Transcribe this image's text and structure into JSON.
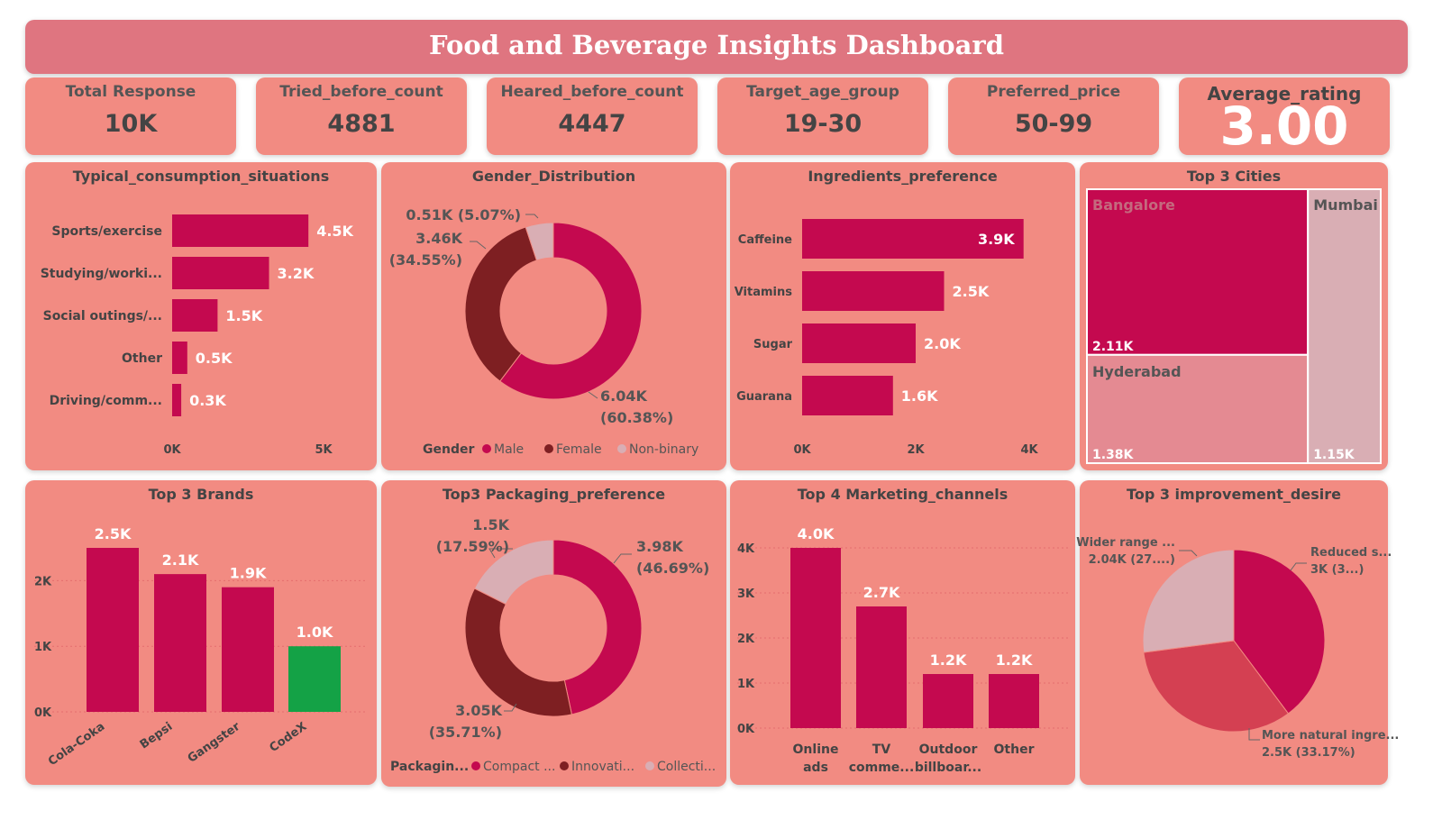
{
  "dashboard": {
    "title": "Food and Beverage Insights Dashboard"
  },
  "kpis": [
    {
      "label": "Total Response",
      "value": "10K"
    },
    {
      "label": "Tried_before_count",
      "value": "4881"
    },
    {
      "label": "Heared_before_count",
      "value": "4447"
    },
    {
      "label": "Target_age_group",
      "value": "19-30"
    },
    {
      "label": "Preferred_price",
      "value": "50-99"
    },
    {
      "label": "Average_rating",
      "value": "3.00"
    }
  ],
  "colors": {
    "primary": "#c4094f",
    "dark": "#7e1f22",
    "light": "#d9aeb4",
    "green": "#14a246",
    "panel": "#f28b82",
    "mid": "#d44052"
  },
  "chart_data": [
    {
      "type": "bar",
      "orientation": "horizontal",
      "title": "Typical_consumption_situations",
      "categories": [
        "Sports/exercise",
        "Studying/worki...",
        "Social outings/...",
        "Other",
        "Driving/comm..."
      ],
      "values": [
        4.5,
        3.2,
        1.5,
        0.5,
        0.3
      ],
      "labels": [
        "4.5K",
        "3.2K",
        "1.5K",
        "0.5K",
        "0.3K"
      ],
      "xlim": [
        0,
        5
      ],
      "ticks": [
        "0K",
        "5K"
      ]
    },
    {
      "type": "pie",
      "donut": true,
      "title": "Gender_Distribution",
      "legend_title": "Gender",
      "categories": [
        "Male",
        "Female",
        "Non-binary"
      ],
      "values": [
        6.04,
        3.46,
        0.51
      ],
      "percents": [
        60.38,
        34.55,
        5.07
      ],
      "labels": [
        "6.04K",
        "3.46K",
        "0.51K (5.07%)"
      ],
      "pct_labels": [
        "(60.38%)",
        "(34.55%)",
        ""
      ]
    },
    {
      "type": "bar",
      "orientation": "horizontal",
      "title": "Ingredients_preference",
      "categories": [
        "Caffeine",
        "Vitamins",
        "Sugar",
        "Guarana"
      ],
      "values": [
        3.9,
        2.5,
        2.0,
        1.6
      ],
      "labels": [
        "3.9K",
        "2.5K",
        "2.0K",
        "1.6K"
      ],
      "xlim": [
        0,
        4
      ],
      "ticks": [
        "0K",
        "2K",
        "4K"
      ]
    },
    {
      "type": "treemap",
      "title": "Top 3 Cities",
      "categories": [
        "Bangalore",
        "Hyderabad",
        "Mumbai"
      ],
      "values": [
        2.11,
        1.38,
        1.15
      ],
      "labels": [
        "2.11K",
        "1.38K",
        "1.15K"
      ]
    },
    {
      "type": "bar",
      "title": "Top 3 Brands",
      "categories": [
        "Cola-Coka",
        "Bepsi",
        "Gangster",
        "CodeX"
      ],
      "values": [
        2.5,
        2.1,
        1.9,
        1.0
      ],
      "labels": [
        "2.5K",
        "2.1K",
        "1.9K",
        "1.0K"
      ],
      "ylim": [
        0,
        2.5
      ],
      "ticks": [
        "0K",
        "1K",
        "2K"
      ]
    },
    {
      "type": "pie",
      "donut": true,
      "title": "Top3 Packaging_preference",
      "legend_title": "Packagin...",
      "categories": [
        "Compact ...",
        "Innovati...",
        "Collecti..."
      ],
      "values": [
        3.98,
        3.05,
        1.5
      ],
      "percents": [
        46.69,
        35.71,
        17.59
      ],
      "labels": [
        "3.98K",
        "3.05K",
        "1.5K"
      ],
      "pct_labels": [
        "(46.69%)",
        "(35.71%)",
        "(17.59%)"
      ]
    },
    {
      "type": "bar",
      "title": "Top 4 Marketing_channels",
      "categories": [
        [
          "Online",
          "ads"
        ],
        [
          "TV",
          "comme..."
        ],
        [
          "Outdoor",
          "billboar..."
        ],
        [
          "Other",
          ""
        ]
      ],
      "values": [
        4.0,
        2.7,
        1.2,
        1.2
      ],
      "labels": [
        "4.0K",
        "2.7K",
        "1.2K",
        "1.2K"
      ],
      "ylim": [
        0,
        4
      ],
      "ticks": [
        "0K",
        "1K",
        "2K",
        "3K",
        "4K"
      ]
    },
    {
      "type": "pie",
      "title": "Top 3 improvement_desire",
      "categories": [
        "Reduced s...",
        "More natural ingre...",
        "Wider range ..."
      ],
      "values": [
        3.0,
        2.5,
        2.04
      ],
      "percents": [
        39.8,
        33.17,
        27.0
      ],
      "label_lines": [
        [
          "Reduced s...",
          "3K (3...)"
        ],
        [
          "More natural ingre...",
          "2.5K (33.17%)"
        ],
        [
          "Wider range ...",
          "2.04K (27....)"
        ]
      ]
    }
  ]
}
